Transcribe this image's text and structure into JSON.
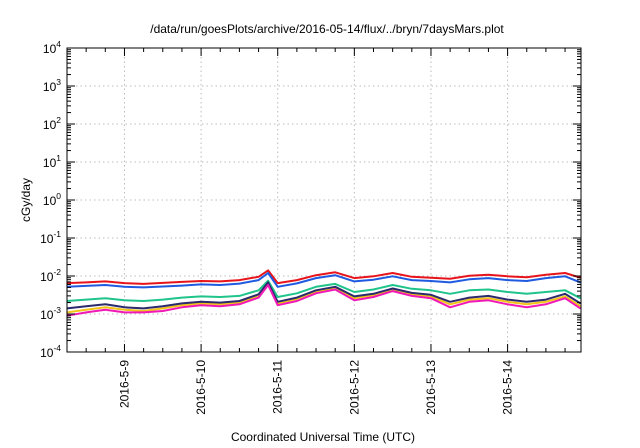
{
  "chart_data": {
    "type": "line",
    "title": "/data/run/goesPlots/archive/2016-05-14/flux/../bryn/7daysMars.plot",
    "xlabel": "Coordinated Universal Time (UTC)",
    "ylabel": "cGy/day",
    "y_scale": "log",
    "ylim": [
      0.0001,
      10000
    ],
    "y_tick_labels": [
      {
        "base": "10",
        "exp": "4"
      },
      {
        "base": "10",
        "exp": "3"
      },
      {
        "base": "10",
        "exp": "2"
      },
      {
        "base": "10",
        "exp": "1"
      },
      {
        "base": "10",
        "exp": "0"
      },
      {
        "base": "10",
        "exp": "-1"
      },
      {
        "base": "10",
        "exp": "-2"
      },
      {
        "base": "10",
        "exp": "-3"
      },
      {
        "base": "10",
        "exp": "-4"
      }
    ],
    "xlim": [
      "2016-05-08 06:00",
      "2016-05-14 23:00"
    ],
    "x_tick_labels": [
      "2016-5-9",
      "2016-5-10",
      "2016-5-11",
      "2016-5-12",
      "2016-5-13",
      "2016-5-14"
    ],
    "grid": true,
    "x": [
      8.25,
      8.5,
      8.75,
      9.0,
      9.25,
      9.5,
      9.75,
      10.0,
      10.25,
      10.5,
      10.75,
      10.875,
      11.0,
      11.25,
      11.5,
      11.75,
      12.0,
      12.25,
      12.5,
      12.75,
      13.0,
      13.25,
      13.5,
      13.75,
      14.0,
      14.25,
      14.5,
      14.75,
      14.95
    ],
    "series": [
      {
        "color": "#e8141c",
        "values": [
          0.0065,
          0.0068,
          0.0072,
          0.0065,
          0.0062,
          0.0066,
          0.007,
          0.0074,
          0.0072,
          0.0078,
          0.0095,
          0.014,
          0.0065,
          0.0078,
          0.0105,
          0.0125,
          0.0088,
          0.0098,
          0.012,
          0.0095,
          0.009,
          0.0085,
          0.0102,
          0.0108,
          0.0098,
          0.0093,
          0.0108,
          0.012,
          0.009
        ]
      },
      {
        "color": "#1f5ae0",
        "values": [
          0.0052,
          0.0055,
          0.0058,
          0.0052,
          0.005,
          0.0053,
          0.0056,
          0.006,
          0.0058,
          0.0063,
          0.0078,
          0.012,
          0.0052,
          0.0064,
          0.0088,
          0.0105,
          0.0072,
          0.008,
          0.0098,
          0.0078,
          0.0074,
          0.0068,
          0.0082,
          0.0088,
          0.0078,
          0.0074,
          0.0088,
          0.0098,
          0.0068
        ]
      },
      {
        "color": "#1fc48a",
        "values": [
          0.0022,
          0.0024,
          0.0026,
          0.0023,
          0.0022,
          0.0024,
          0.0027,
          0.0029,
          0.0028,
          0.003,
          0.0042,
          0.0075,
          0.0028,
          0.0035,
          0.0052,
          0.0062,
          0.0038,
          0.0044,
          0.0058,
          0.0046,
          0.0042,
          0.0034,
          0.0042,
          0.0044,
          0.0038,
          0.0034,
          0.0038,
          0.0042,
          0.0026
        ]
      },
      {
        "color": "#f2c318",
        "values": [
          0.0011,
          0.0013,
          0.0015,
          0.0013,
          0.0012,
          0.0014,
          0.0017,
          0.0019,
          0.0018,
          0.002,
          0.003,
          0.0062,
          0.0019,
          0.0025,
          0.0039,
          0.0048,
          0.0026,
          0.0031,
          0.0044,
          0.0033,
          0.0029,
          0.0018,
          0.0024,
          0.0026,
          0.0021,
          0.0018,
          0.0021,
          0.0029,
          0.0016
        ]
      },
      {
        "color": "#2b2a6e",
        "values": [
          0.0014,
          0.0016,
          0.0018,
          0.0015,
          0.0014,
          0.0016,
          0.0019,
          0.0021,
          0.002,
          0.0022,
          0.0033,
          0.0068,
          0.0021,
          0.0027,
          0.0042,
          0.0052,
          0.0029,
          0.0034,
          0.0047,
          0.0036,
          0.0032,
          0.0021,
          0.0027,
          0.003,
          0.0024,
          0.0021,
          0.0024,
          0.0034,
          0.0019
        ]
      },
      {
        "color": "#f019b8",
        "values": [
          0.0009,
          0.0011,
          0.0013,
          0.0011,
          0.0011,
          0.0012,
          0.0015,
          0.0017,
          0.0016,
          0.0018,
          0.0027,
          0.0058,
          0.0017,
          0.0022,
          0.0035,
          0.0044,
          0.0023,
          0.0028,
          0.004,
          0.003,
          0.0026,
          0.0015,
          0.0021,
          0.0023,
          0.0018,
          0.0015,
          0.0018,
          0.0026,
          0.0014
        ]
      }
    ]
  }
}
